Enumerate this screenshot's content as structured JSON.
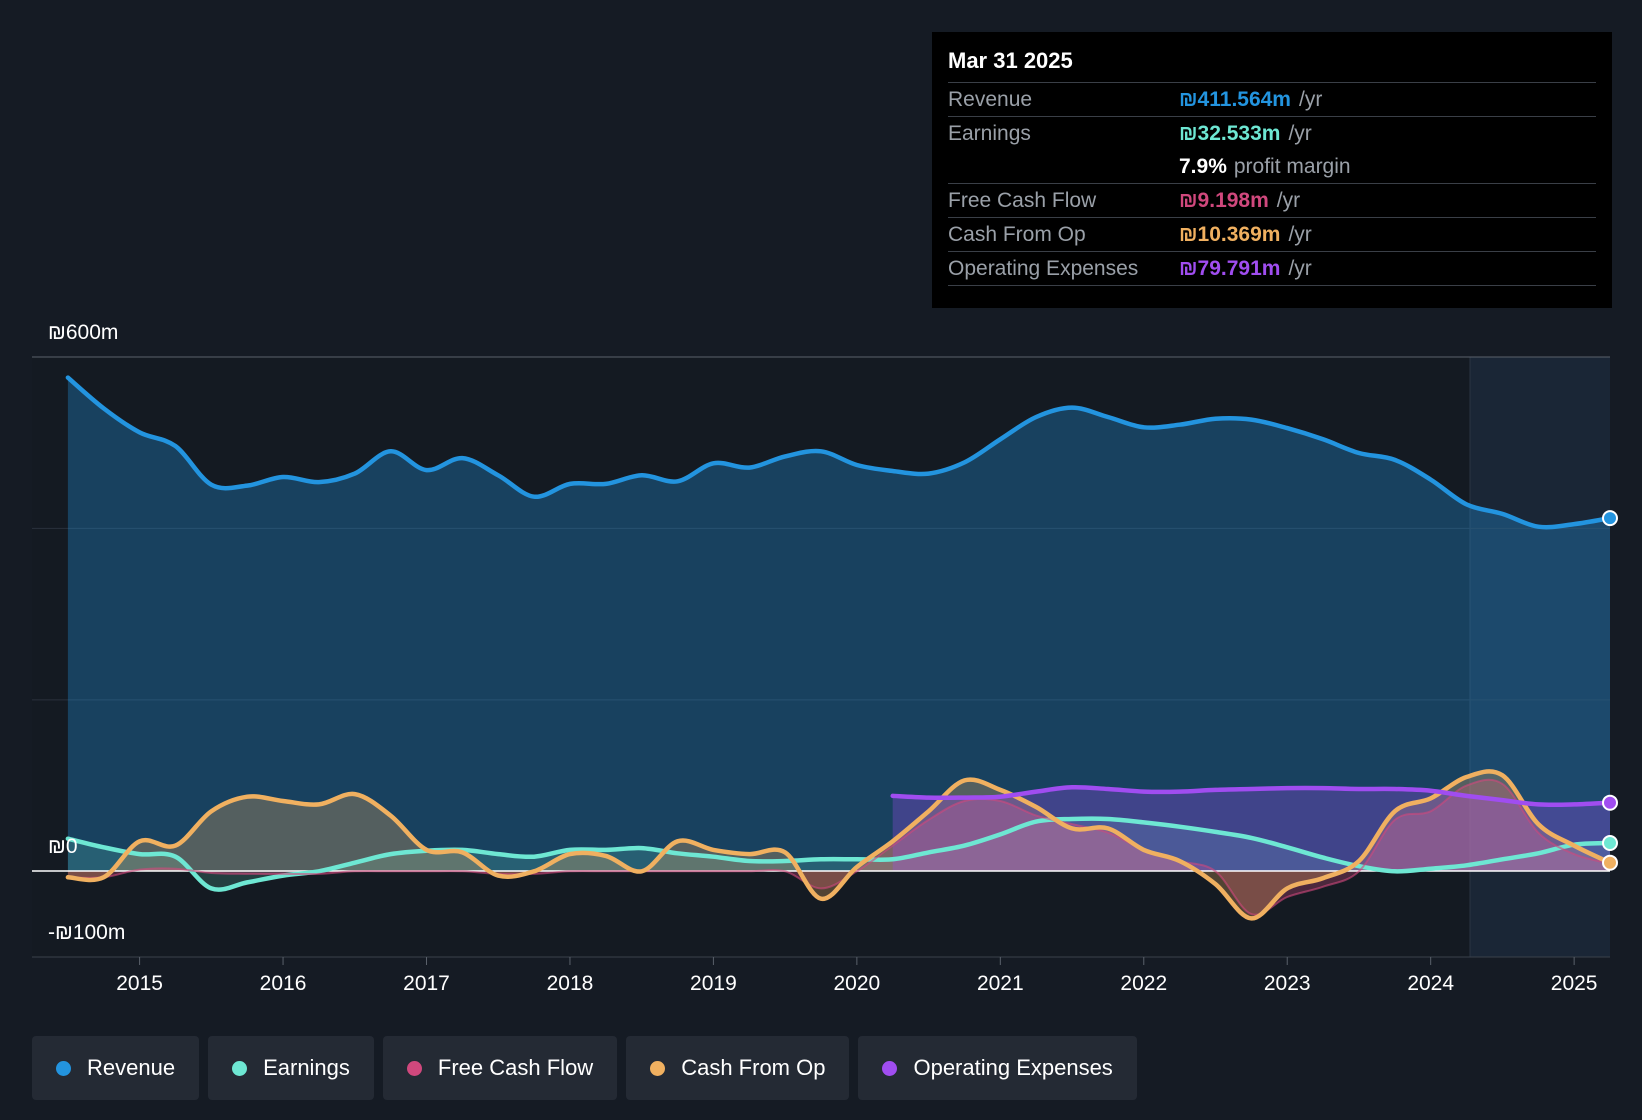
{
  "tooltip": {
    "date": "Mar 31 2025",
    "rows": [
      {
        "label": "Revenue",
        "value": "₪411.564m",
        "unit": "/yr",
        "color": "#2394df"
      },
      {
        "label": "Earnings",
        "value": "₪32.533m",
        "unit": "/yr",
        "color": "#6ee7d3"
      },
      {
        "label": "",
        "value": "7.9%",
        "unit": "profit margin",
        "color": "#ffffff"
      },
      {
        "label": "Free Cash Flow",
        "value": "₪9.198m",
        "unit": "/yr",
        "color": "#d0487d"
      },
      {
        "label": "Cash From Op",
        "value": "₪10.369m",
        "unit": "/yr",
        "color": "#f0b060"
      },
      {
        "label": "Operating Expenses",
        "value": "₪79.791m",
        "unit": "/yr",
        "color": "#a04df0"
      }
    ]
  },
  "axis": {
    "y_top_label": "₪600m",
    "y_zero_label": "₪0",
    "y_bottom_label": "-₪100m"
  },
  "legend": [
    {
      "label": "Revenue",
      "color": "#2394df"
    },
    {
      "label": "Earnings",
      "color": "#6ee7d3"
    },
    {
      "label": "Free Cash Flow",
      "color": "#d0487d"
    },
    {
      "label": "Cash From Op",
      "color": "#f0b060"
    },
    {
      "label": "Operating Expenses",
      "color": "#a04df0"
    }
  ],
  "chart_data": {
    "type": "line",
    "title": "",
    "xlabel": "",
    "ylabel": "",
    "ylim": [
      -100,
      600
    ],
    "xlim": [
      2014.25,
      2025.25
    ],
    "x_ticks": [
      "2015",
      "2016",
      "2017",
      "2018",
      "2019",
      "2020",
      "2021",
      "2022",
      "2023",
      "2024",
      "2025"
    ],
    "series": [
      {
        "name": "Revenue",
        "color": "#2394df",
        "x": [
          2014.5,
          2014.75,
          2015.0,
          2015.25,
          2015.5,
          2015.75,
          2016.0,
          2016.25,
          2016.5,
          2016.75,
          2017.0,
          2017.25,
          2017.5,
          2017.75,
          2018.0,
          2018.25,
          2018.5,
          2018.75,
          2019.0,
          2019.25,
          2019.5,
          2019.75,
          2020.0,
          2020.25,
          2020.5,
          2020.75,
          2021.0,
          2021.25,
          2021.5,
          2021.75,
          2022.0,
          2022.25,
          2022.5,
          2022.75,
          2023.0,
          2023.25,
          2023.5,
          2023.75,
          2024.0,
          2024.25,
          2024.5,
          2024.75,
          2025.0,
          2025.25
        ],
        "values": [
          576,
          540,
          512,
          496,
          451,
          450,
          460,
          454,
          464,
          490,
          468,
          482,
          462,
          437,
          452,
          452,
          462,
          455,
          476,
          471,
          484,
          490,
          474,
          467,
          464,
          477,
          504,
          530,
          541,
          530,
          518,
          521,
          528,
          527,
          517,
          504,
          488,
          480,
          457,
          428,
          417,
          402,
          405,
          412
        ]
      },
      {
        "name": "Earnings",
        "color": "#6ee7d3",
        "x": [
          2014.5,
          2014.75,
          2015.0,
          2015.25,
          2015.5,
          2015.75,
          2016.0,
          2016.25,
          2016.5,
          2016.75,
          2017.0,
          2017.25,
          2017.5,
          2017.75,
          2018.0,
          2018.25,
          2018.5,
          2018.75,
          2019.0,
          2019.25,
          2019.5,
          2019.75,
          2020.0,
          2020.25,
          2020.5,
          2020.75,
          2021.0,
          2021.25,
          2021.5,
          2021.75,
          2022.0,
          2022.25,
          2022.5,
          2022.75,
          2023.0,
          2023.25,
          2023.5,
          2023.75,
          2024.0,
          2024.25,
          2024.5,
          2024.75,
          2025.0,
          2025.25
        ],
        "values": [
          38,
          28,
          20,
          17,
          -20,
          -13,
          -5,
          0,
          10,
          20,
          24,
          25,
          20,
          17,
          25,
          25,
          27,
          21,
          17,
          12,
          12,
          14,
          14,
          14,
          22,
          30,
          43,
          58,
          61,
          61,
          57,
          52,
          46,
          39,
          28,
          16,
          6,
          0,
          3,
          7,
          14,
          21,
          31,
          33
        ]
      },
      {
        "name": "Free Cash Flow",
        "color": "#d0487d",
        "x": [
          2014.5,
          2014.75,
          2015.0,
          2015.25,
          2015.5,
          2015.75,
          2016.0,
          2016.25,
          2016.5,
          2016.75,
          2017.0,
          2017.25,
          2017.5,
          2017.75,
          2018.0,
          2018.25,
          2018.5,
          2018.75,
          2019.0,
          2019.25,
          2019.5,
          2019.75,
          2020.0,
          2020.25,
          2020.5,
          2020.75,
          2021.0,
          2021.25,
          2021.5,
          2021.75,
          2022.0,
          2022.25,
          2022.5,
          2022.75,
          2023.0,
          2023.25,
          2023.5,
          2023.75,
          2024.0,
          2024.25,
          2024.5,
          2024.75,
          2025.0,
          2025.25
        ],
        "values": [
          -7,
          -7,
          2,
          3,
          -2,
          -3,
          -3,
          -3,
          0,
          0,
          0,
          0,
          -3,
          -3,
          0,
          0,
          0,
          0,
          0,
          0,
          0,
          -20,
          0,
          30,
          60,
          82,
          82,
          65,
          55,
          45,
          25,
          12,
          0,
          -50,
          -30,
          -18,
          0,
          60,
          70,
          100,
          102,
          45,
          20,
          9
        ]
      },
      {
        "name": "Cash From Op",
        "color": "#f0b060",
        "x": [
          2014.5,
          2014.75,
          2015.0,
          2015.25,
          2015.5,
          2015.75,
          2016.0,
          2016.25,
          2016.5,
          2016.75,
          2017.0,
          2017.25,
          2017.5,
          2017.75,
          2018.0,
          2018.25,
          2018.5,
          2018.75,
          2019.0,
          2019.25,
          2019.5,
          2019.75,
          2020.0,
          2020.25,
          2020.5,
          2020.75,
          2021.0,
          2021.25,
          2021.5,
          2021.75,
          2022.0,
          2022.25,
          2022.5,
          2022.75,
          2023.0,
          2023.25,
          2023.5,
          2023.75,
          2024.0,
          2024.25,
          2024.5,
          2024.75,
          2025.0,
          2025.25
        ],
        "values": [
          -7,
          -7,
          35,
          30,
          70,
          87,
          82,
          78,
          90,
          65,
          25,
          22,
          -5,
          0,
          20,
          18,
          0,
          35,
          25,
          20,
          22,
          -32,
          5,
          35,
          70,
          106,
          95,
          75,
          50,
          50,
          25,
          12,
          -15,
          -55,
          -20,
          -8,
          12,
          70,
          85,
          110,
          112,
          55,
          30,
          10
        ]
      },
      {
        "name": "Operating Expenses",
        "color": "#a04df0",
        "x": [
          2020.25,
          2020.5,
          2020.75,
          2021.0,
          2021.25,
          2021.5,
          2021.75,
          2022.0,
          2022.25,
          2022.5,
          2022.75,
          2023.0,
          2023.25,
          2023.5,
          2023.75,
          2024.0,
          2024.25,
          2024.5,
          2024.75,
          2025.0,
          2025.25
        ],
        "values": [
          88,
          86,
          86,
          87,
          93,
          98,
          96,
          93,
          93,
          95,
          96,
          97,
          97,
          96,
          96,
          94,
          88,
          83,
          78,
          78,
          80
        ]
      }
    ]
  }
}
